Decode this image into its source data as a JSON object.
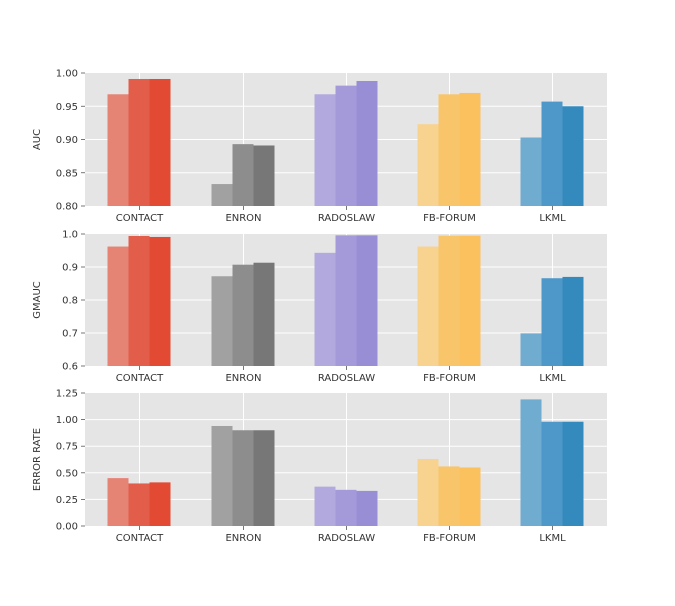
{
  "chart_data": [
    {
      "type": "bar",
      "ylabel": "AUC",
      "ylim": [
        0.8,
        1.0
      ],
      "yticks": [
        "0.80",
        "0.85",
        "0.90",
        "0.95",
        "1.00"
      ],
      "categories": [
        "CONTACT",
        "ENRON",
        "RADOSLAW",
        "FB-FORUM",
        "LKML"
      ],
      "series": [
        {
          "values": [
            0.968,
            0.833,
            0.968,
            0.923,
            0.903
          ]
        },
        {
          "values": [
            0.991,
            0.893,
            0.981,
            0.968,
            0.957
          ]
        },
        {
          "values": [
            0.991,
            0.891,
            0.988,
            0.97,
            0.95
          ]
        }
      ],
      "grid": true
    },
    {
      "type": "bar",
      "ylabel": "GMAUC",
      "ylim": [
        0.6,
        1.0
      ],
      "yticks": [
        "0.6",
        "0.7",
        "0.8",
        "0.9",
        "1.0"
      ],
      "categories": [
        "CONTACT",
        "ENRON",
        "RADOSLAW",
        "FB-FORUM",
        "LKML"
      ],
      "series": [
        {
          "values": [
            0.962,
            0.872,
            0.943,
            0.962,
            0.699
          ]
        },
        {
          "values": [
            0.994,
            0.907,
            0.996,
            0.995,
            0.866
          ]
        },
        {
          "values": [
            0.991,
            0.913,
            0.996,
            0.995,
            0.87
          ]
        }
      ],
      "grid": true
    },
    {
      "type": "bar",
      "ylabel": "ERROR RATE",
      "ylim": [
        0.0,
        1.25
      ],
      "yticks": [
        "0.00",
        "0.25",
        "0.50",
        "0.75",
        "1.00",
        "1.25"
      ],
      "categories": [
        "CONTACT",
        "ENRON",
        "RADOSLAW",
        "FB-FORUM",
        "LKML"
      ],
      "series": [
        {
          "values": [
            0.45,
            0.94,
            0.37,
            0.63,
            1.19
          ]
        },
        {
          "values": [
            0.4,
            0.9,
            0.34,
            0.56,
            0.98
          ]
        },
        {
          "values": [
            0.41,
            0.9,
            0.33,
            0.55,
            0.98
          ]
        }
      ],
      "grid": true
    }
  ],
  "colors": {
    "background": "#e5e5e5",
    "grid": "#ffffff",
    "category_palettes": [
      [
        "#e58374",
        "#e25e4b",
        "#e24a33"
      ],
      [
        "#a1a1a1",
        "#8d8d8d",
        "#777777"
      ],
      [
        "#b2aade",
        "#a49ad9",
        "#988ed5"
      ],
      [
        "#f8d28f",
        "#f9c56b",
        "#fbc15e"
      ],
      [
        "#6facd0",
        "#4e98c9",
        "#348abd"
      ]
    ]
  }
}
